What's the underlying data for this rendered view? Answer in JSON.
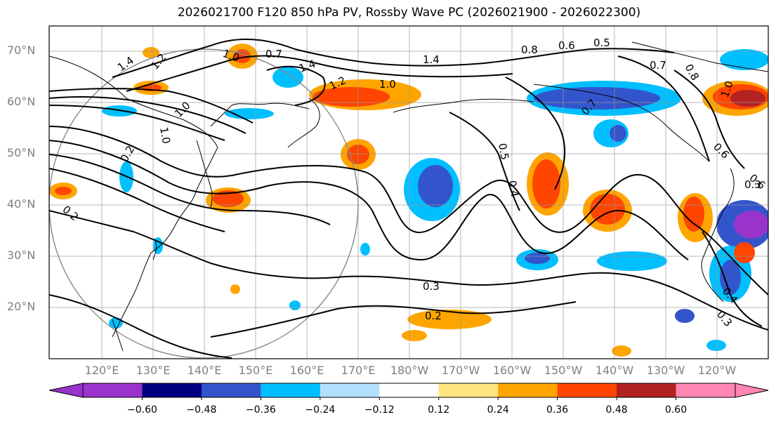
{
  "title": "2026021700 F120 850 hPa PV, Rossby Wave PC (2026021900 - 2026022300)",
  "lat_labels": [
    "70°N",
    "60°N",
    "50°N",
    "40°N",
    "30°N",
    "20°N"
  ],
  "lon_labels": [
    "120°E",
    "130°E",
    "140°E",
    "150°E",
    "160°E",
    "170°E",
    "180°W",
    "170°W",
    "160°W",
    "150°W",
    "140°W",
    "130°W",
    "120°W"
  ],
  "contour_labels": [
    "1.4",
    "1.2",
    "1.0",
    "0.7",
    "1.4",
    "1.2",
    "1.0",
    "1.4",
    "0.8",
    "0.6",
    "0.5",
    "0.7",
    "0.8",
    "1.0",
    "0.7",
    "0.6",
    "0.5",
    "0.4",
    "0.2",
    "1.0",
    "0.3",
    "0.2",
    "0.2",
    "0.4",
    "0.3",
    "0.6",
    "0.3",
    "1.0"
  ],
  "colorbar": {
    "ticks": [
      "−0.60",
      "−0.48",
      "−0.36",
      "−0.24",
      "−0.12",
      "0.12",
      "0.24",
      "0.36",
      "0.48",
      "0.60"
    ],
    "colors": [
      "#9933cc",
      "#000080",
      "#3355cc",
      "#00bfff",
      "#b3e0ff",
      "#ffffff",
      "#ffe680",
      "#ffa500",
      "#ff4500",
      "#b22222",
      "#ff85b3"
    ]
  }
}
